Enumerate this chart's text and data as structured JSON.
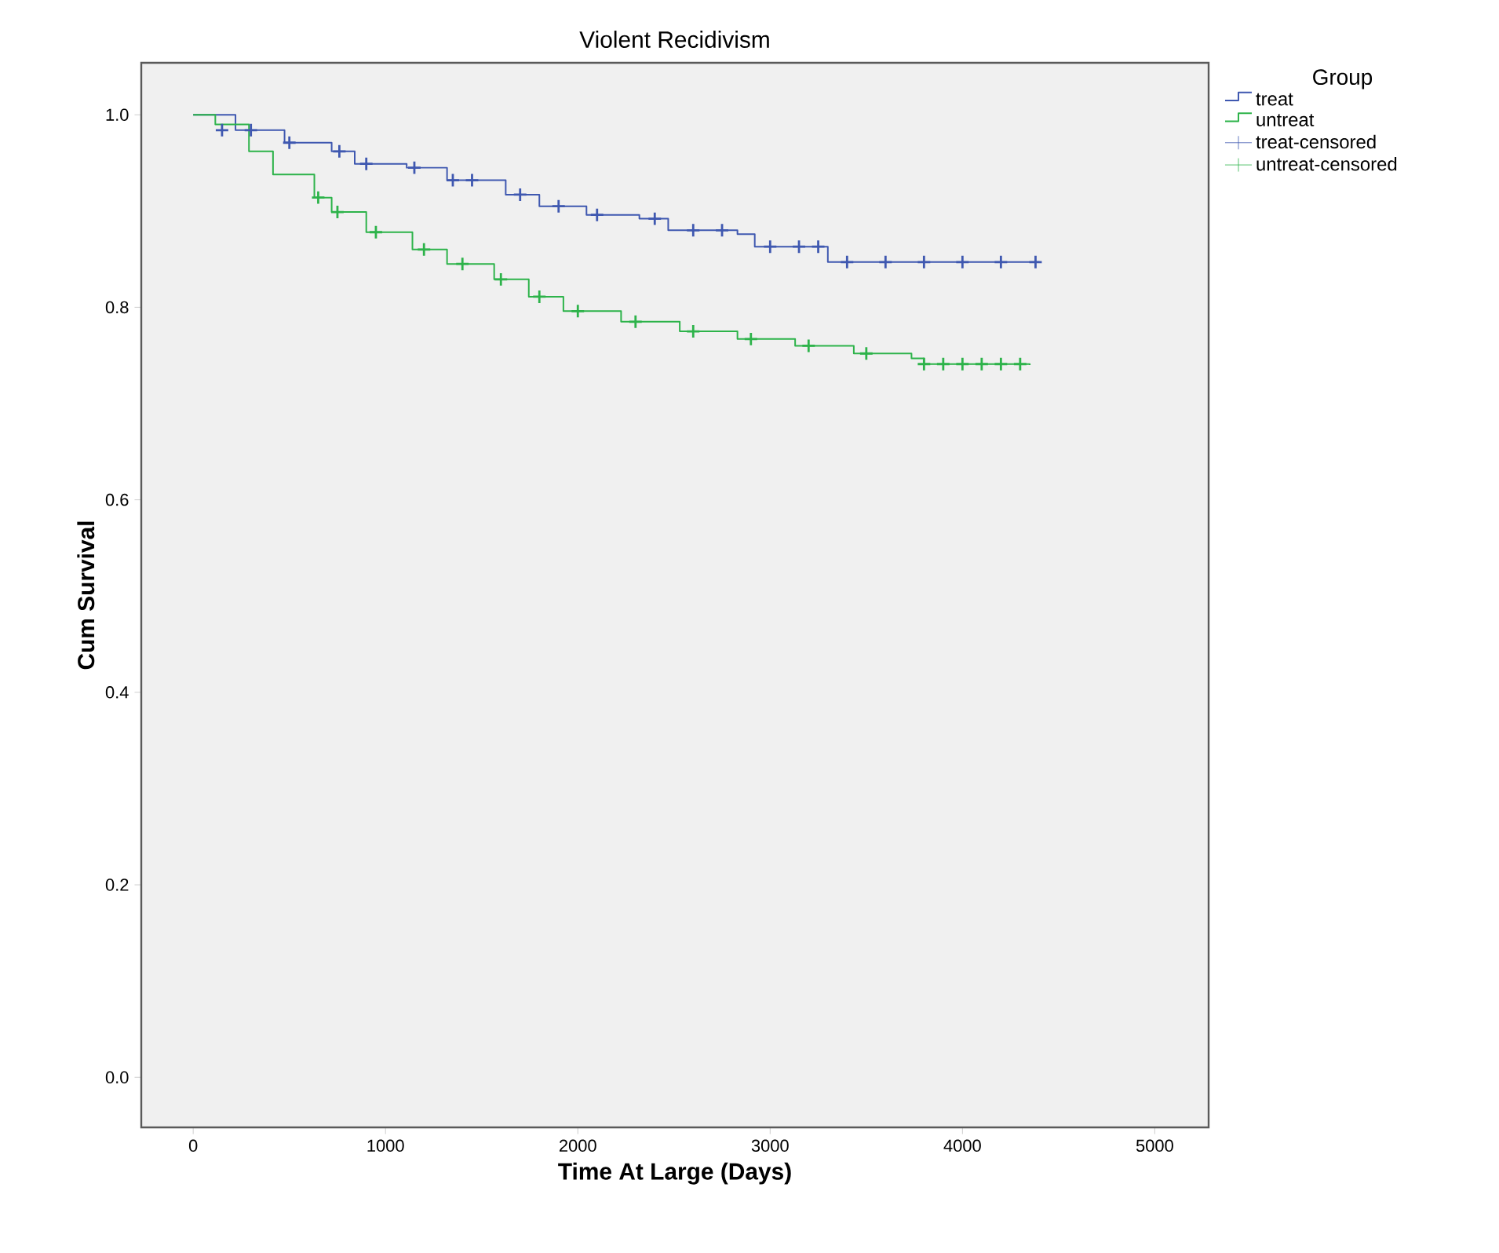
{
  "chart_data": {
    "type": "step",
    "title": "Violent Recidivism",
    "xlabel": "Time At Large (Days)",
    "ylabel": "Cum Survival",
    "legend_title": "Group",
    "legend": "top right",
    "grid": false,
    "xlim": [
      -270,
      5280
    ],
    "ylim": [
      -0.052,
      1.054
    ],
    "xticks": [
      0,
      1000,
      2000,
      3000,
      4000,
      5000
    ],
    "yticks": [
      {
        "value": 0,
        "label": "0.0"
      },
      {
        "value": 0.2,
        "label": "0.2"
      },
      {
        "value": 0.4,
        "label": "0.4"
      },
      {
        "value": 0.6,
        "label": "0.6"
      },
      {
        "value": 0.8,
        "label": "0.8"
      },
      {
        "value": 1,
        "label": "1.0"
      }
    ],
    "series": [
      {
        "name": "treat",
        "color": "#3f58b0",
        "x": [
          0,
          220,
          475,
          720,
          840,
          1110,
          1320,
          1625,
          1800,
          2045,
          2320,
          2470,
          2830,
          2920,
          3300,
          4400
        ],
        "values": [
          1.0,
          0.984,
          0.971,
          0.962,
          0.949,
          0.945,
          0.932,
          0.917,
          0.905,
          0.896,
          0.892,
          0.88,
          0.876,
          0.863,
          0.847,
          0.847
        ]
      },
      {
        "name": "untreat",
        "color": "#2db34a",
        "x": [
          0,
          115,
          290,
          415,
          630,
          720,
          900,
          1140,
          1320,
          1565,
          1745,
          1925,
          2225,
          2530,
          2830,
          3130,
          3435,
          3735,
          3800,
          4350
        ],
        "values": [
          1.0,
          0.99,
          0.962,
          0.938,
          0.914,
          0.899,
          0.878,
          0.86,
          0.845,
          0.829,
          0.811,
          0.796,
          0.785,
          0.775,
          0.767,
          0.76,
          0.752,
          0.747,
          0.741,
          0.74
        ]
      },
      {
        "name": "treat-censored",
        "type": "scatter",
        "marker": "cross",
        "color": "#3f58b0",
        "x": [
          150,
          300,
          500,
          760,
          900,
          1150,
          1350,
          1450,
          1700,
          1900,
          2100,
          2400,
          2600,
          2750,
          3000,
          3150,
          3250,
          3400,
          3600,
          3800,
          4000,
          4200,
          4380
        ],
        "values": [
          0.984,
          0.984,
          0.971,
          0.962,
          0.949,
          0.945,
          0.932,
          0.932,
          0.917,
          0.905,
          0.896,
          0.892,
          0.88,
          0.88,
          0.863,
          0.863,
          0.863,
          0.847,
          0.847,
          0.847,
          0.847,
          0.847,
          0.847
        ]
      },
      {
        "name": "untreat-censored",
        "type": "scatter",
        "marker": "cross",
        "color": "#2db34a",
        "x": [
          650,
          750,
          950,
          1200,
          1400,
          1600,
          1800,
          2000,
          2300,
          2600,
          2900,
          3200,
          3500,
          3800,
          3900,
          4000,
          4100,
          4200,
          4300
        ],
        "values": [
          0.914,
          0.899,
          0.878,
          0.86,
          0.845,
          0.829,
          0.811,
          0.796,
          0.785,
          0.775,
          0.767,
          0.76,
          0.752,
          0.741,
          0.741,
          0.741,
          0.741,
          0.741,
          0.741
        ]
      }
    ]
  }
}
